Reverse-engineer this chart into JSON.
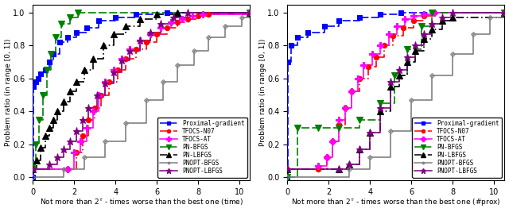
{
  "xlabel_left": "Not more than $2^{\\tau}$ - times worse than the best one (time)",
  "xlabel_right": "Not more than $2^{\\tau}$ - times worse than the best one (#prox)",
  "ylabel": "Problem ratio (in range [0, 1])",
  "xlim": [
    0,
    10.5
  ],
  "ylim": [
    -0.02,
    1.05
  ],
  "xticks": [
    0,
    2,
    4,
    6,
    8,
    10
  ],
  "yticks": [
    0,
    0.2,
    0.4,
    0.6,
    0.8,
    1.0
  ],
  "left_data": {
    "Proximal-gradient": {
      "x": [
        0,
        0.05,
        0.15,
        0.25,
        0.4,
        0.6,
        0.8,
        1.0,
        1.3,
        1.7,
        2.1,
        2.6,
        3.2,
        4.0,
        5.0,
        6.5,
        10.5
      ],
      "y": [
        0.0,
        0.55,
        0.58,
        0.6,
        0.63,
        0.65,
        0.7,
        0.75,
        0.82,
        0.85,
        0.88,
        0.91,
        0.95,
        0.97,
        0.99,
        1.0,
        1.0
      ]
    },
    "TFOCS-N07": {
      "x": [
        0,
        1.7,
        2.1,
        2.4,
        2.7,
        3.0,
        3.3,
        3.7,
        4.1,
        4.5,
        5.0,
        5.5,
        6.0,
        6.5,
        7.0,
        7.5,
        8.0,
        8.5,
        10.5
      ],
      "y": [
        0.05,
        0.05,
        0.15,
        0.25,
        0.35,
        0.42,
        0.5,
        0.58,
        0.65,
        0.72,
        0.78,
        0.82,
        0.87,
        0.91,
        0.94,
        0.96,
        0.98,
        0.99,
        1.0
      ]
    },
    "TFOCS-AT": {
      "x": [
        0,
        1.7,
        2.0,
        2.3,
        2.6,
        2.9,
        3.2,
        3.5,
        3.9,
        4.3,
        4.7,
        5.2,
        5.7,
        6.2,
        6.7,
        7.2,
        7.7,
        8.2,
        10.5
      ],
      "y": [
        0.05,
        0.05,
        0.15,
        0.22,
        0.3,
        0.4,
        0.5,
        0.58,
        0.65,
        0.72,
        0.78,
        0.83,
        0.87,
        0.91,
        0.94,
        0.96,
        0.98,
        0.99,
        1.0
      ]
    },
    "PN-BFGS": {
      "x": [
        0,
        0.05,
        0.15,
        0.3,
        0.5,
        0.7,
        0.9,
        1.1,
        1.4,
        1.8,
        2.2,
        10.5
      ],
      "y": [
        0.05,
        0.08,
        0.2,
        0.35,
        0.5,
        0.65,
        0.75,
        0.85,
        0.93,
        0.97,
        1.0,
        1.0
      ]
    },
    "PN-LBFGS": {
      "x": [
        0,
        0.2,
        0.4,
        0.6,
        0.8,
        1.0,
        1.2,
        1.5,
        1.8,
        2.1,
        2.5,
        2.9,
        3.4,
        3.9,
        4.5,
        5.2,
        6.0,
        7.0,
        10.5
      ],
      "y": [
        0.05,
        0.1,
        0.18,
        0.25,
        0.3,
        0.35,
        0.4,
        0.46,
        0.52,
        0.58,
        0.65,
        0.72,
        0.8,
        0.87,
        0.92,
        0.96,
        0.99,
        1.0,
        1.0
      ]
    },
    "PNOPT-BFGS": {
      "x": [
        0,
        1.5,
        2.5,
        3.5,
        4.5,
        5.5,
        6.3,
        7.0,
        7.8,
        8.5,
        9.3,
        10.1,
        10.5
      ],
      "y": [
        0.0,
        0.05,
        0.12,
        0.22,
        0.33,
        0.47,
        0.58,
        0.68,
        0.77,
        0.85,
        0.92,
        0.97,
        1.0
      ]
    },
    "PNOPT-LBFGS": {
      "x": [
        0,
        0.8,
        1.2,
        1.5,
        1.8,
        2.1,
        2.4,
        2.7,
        3.1,
        3.5,
        3.9,
        4.3,
        4.7,
        5.2,
        5.7,
        6.2,
        6.8,
        7.5,
        10.5
      ],
      "y": [
        0.05,
        0.08,
        0.12,
        0.17,
        0.22,
        0.28,
        0.35,
        0.42,
        0.5,
        0.57,
        0.64,
        0.71,
        0.77,
        0.83,
        0.88,
        0.93,
        0.97,
        1.0,
        1.0
      ]
    }
  },
  "right_data": {
    "Proximal-gradient": {
      "x": [
        0,
        0.05,
        0.2,
        0.5,
        1.0,
        1.8,
        2.5,
        3.5,
        4.5,
        5.5,
        10.5
      ],
      "y": [
        0.0,
        0.7,
        0.8,
        0.85,
        0.88,
        0.92,
        0.95,
        0.97,
        0.99,
        1.0,
        1.0
      ]
    },
    "TFOCS-N07": {
      "x": [
        0,
        1.5,
        1.9,
        2.2,
        2.5,
        2.8,
        3.1,
        3.5,
        3.9,
        4.3,
        4.7,
        5.1,
        5.6,
        6.1,
        6.6,
        7.1,
        10.5
      ],
      "y": [
        0.05,
        0.05,
        0.12,
        0.22,
        0.32,
        0.42,
        0.52,
        0.6,
        0.67,
        0.73,
        0.8,
        0.86,
        0.91,
        0.95,
        0.98,
        1.0,
        1.0
      ]
    },
    "TFOCS-AT": {
      "x": [
        0,
        1.5,
        1.9,
        2.2,
        2.5,
        2.8,
        3.1,
        3.4,
        3.7,
        4.1,
        4.5,
        4.9,
        5.3,
        5.7,
        6.1,
        6.6,
        7.1,
        10.5
      ],
      "y": [
        0.05,
        0.07,
        0.12,
        0.22,
        0.35,
        0.42,
        0.52,
        0.6,
        0.68,
        0.75,
        0.8,
        0.87,
        0.92,
        0.96,
        0.98,
        0.99,
        1.0,
        1.0
      ]
    },
    "PN-BFGS": {
      "x": [
        0,
        0.5,
        1.5,
        2.5,
        3.5,
        4.5,
        5.2,
        5.8,
        6.5,
        7.0,
        10.5
      ],
      "y": [
        0.0,
        0.3,
        0.3,
        0.3,
        0.35,
        0.45,
        0.62,
        0.78,
        0.92,
        1.0,
        1.0
      ]
    },
    "PN-LBFGS": {
      "x": [
        0,
        2.5,
        3.0,
        3.5,
        4.0,
        4.5,
        5.0,
        5.4,
        5.8,
        6.2,
        6.6,
        7.0,
        7.5,
        8.0,
        10.5
      ],
      "y": [
        0.05,
        0.05,
        0.08,
        0.17,
        0.27,
        0.4,
        0.55,
        0.62,
        0.7,
        0.77,
        0.84,
        0.9,
        0.95,
        0.97,
        1.0
      ]
    },
    "PNOPT-BFGS": {
      "x": [
        0,
        3.0,
        4.0,
        5.0,
        6.0,
        7.0,
        8.0,
        9.0,
        9.8,
        10.5
      ],
      "y": [
        0.0,
        0.05,
        0.12,
        0.28,
        0.47,
        0.62,
        0.75,
        0.87,
        0.97,
        1.0
      ]
    },
    "PNOPT-LBFGS": {
      "x": [
        0,
        2.5,
        3.0,
        3.5,
        4.0,
        4.5,
        5.0,
        5.4,
        5.8,
        6.2,
        6.6,
        7.0,
        7.5,
        8.0,
        10.5
      ],
      "y": [
        0.05,
        0.05,
        0.08,
        0.17,
        0.27,
        0.42,
        0.58,
        0.65,
        0.73,
        0.8,
        0.87,
        0.93,
        0.97,
        1.0,
        1.0
      ]
    }
  },
  "fontsize": 7.0
}
